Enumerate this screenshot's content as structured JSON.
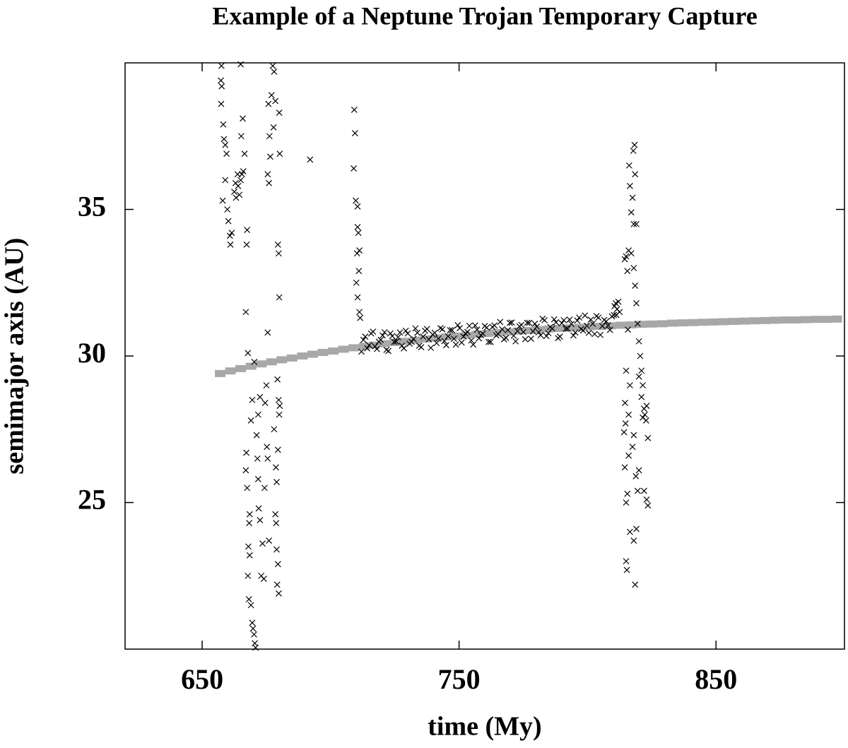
{
  "chart_data": {
    "type": "scatter",
    "title": "Example of a Neptune Trojan Temporary Capture",
    "x_label": "time (My)",
    "y_label": "semimajor axis (AU)",
    "xlim": [
      620,
      900
    ],
    "ylim": [
      20,
      40
    ],
    "xticks": [
      650,
      750,
      850
    ],
    "yticks": [
      25,
      30,
      35
    ],
    "grid": false,
    "mirror_ticks": true,
    "series": [
      {
        "color": "#a8a8a8",
        "marker": "band",
        "x": [
          657,
          661,
          665,
          669,
          673,
          677,
          681,
          685,
          689,
          693,
          697,
          701,
          705,
          709,
          713,
          717,
          721,
          725,
          729,
          733,
          737,
          741,
          745,
          749,
          753,
          757,
          761,
          765,
          769,
          773,
          777,
          781,
          785,
          789,
          793,
          797,
          801,
          805,
          809,
          813,
          817,
          821,
          825,
          829,
          833,
          837,
          841,
          845,
          849,
          853,
          857,
          861,
          865,
          869,
          873,
          877,
          881,
          885,
          889,
          893,
          897
        ],
        "values": [
          29.4,
          29.49,
          29.57,
          29.65,
          29.73,
          29.8,
          29.87,
          29.93,
          30.0,
          30.06,
          30.12,
          30.17,
          30.23,
          30.28,
          30.33,
          30.37,
          30.42,
          30.46,
          30.5,
          30.54,
          30.58,
          30.61,
          30.65,
          30.68,
          30.71,
          30.74,
          30.77,
          30.8,
          30.82,
          30.85,
          30.87,
          30.9,
          30.92,
          30.94,
          30.96,
          30.98,
          31.0,
          31.01,
          31.03,
          31.05,
          31.06,
          31.08,
          31.09,
          31.1,
          31.12,
          31.13,
          31.14,
          31.15,
          31.16,
          31.17,
          31.18,
          31.19,
          31.2,
          31.21,
          31.22,
          31.23,
          31.23,
          31.24,
          31.25,
          31.25,
          31.26
        ]
      },
      {
        "color": "#000000",
        "marker": "x",
        "x": [
          657.5,
          657.3,
          657.6,
          657.4,
          658.2,
          658.5,
          659.0,
          659.5,
          659.0,
          658.0,
          659.8,
          660.2,
          660.8,
          661.0,
          661.5,
          662.5,
          663.0,
          663.8,
          664.5,
          665.0,
          665.5,
          666.0,
          664.0,
          663.2,
          665.8,
          665.2,
          666.5,
          667.5,
          667.3,
          665.0,
          667.0,
          667.8,
          670.3,
          669.5,
          669.0,
          667.2,
          667.0,
          667.5,
          668.5,
          668.3,
          668.0,
          668.5,
          667.8,
          668.2,
          669.0,
          669.5,
          669.8,
          670.2,
          670.5,
          670.8,
          671.5,
          671.8,
          672.0,
          672.5,
          673.0,
          673.5,
          671.2,
          671.8,
          672.5,
          674.5,
          675.0,
          675.2,
          674.3,
          675.5,
          676.0,
          674.0,
          675.5,
          675.8,
          676.2,
          677.0,
          677.5,
          678.0,
          678.5,
          677.8,
          676.5,
          675.5,
          676.0,
          680.0,
          680.2,
          679.5,
          679.8,
          680.0,
          678.5,
          678.8,
          679.0,
          679.5,
          679.2,
          679.8,
          679.5,
          680.0,
          679.8,
          679.3,
          680.2,
          679.0,
          678.0,
          678.7,
          692.0,
          709.2,
          709.5,
          709.0,
          709.8,
          710.5,
          710.5,
          710.8,
          711.2,
          710.3,
          711.0,
          710.0,
          710.5,
          711.2,
          711.5,
          712,
          713.5,
          715,
          716.5,
          718,
          719.5,
          721,
          722.5,
          724,
          725.5,
          727,
          728.5,
          730,
          731.5,
          733,
          734.5,
          736,
          737.5,
          739,
          740.5,
          742,
          743.5,
          745,
          746.5,
          748,
          749.5,
          751,
          752.5,
          754,
          755.5,
          757,
          758.5,
          760,
          761.5,
          763,
          764.5,
          766,
          767.5,
          769,
          770.5,
          772,
          773.5,
          775,
          776.5,
          778,
          779.5,
          781,
          782.5,
          784,
          785.5,
          787,
          788.5,
          790,
          791.5,
          793,
          794.5,
          796,
          797.5,
          799,
          800.5,
          802,
          803.5,
          805,
          806.5,
          808,
          809.5,
          712.75,
          714.25,
          715.75,
          717.25,
          718.75,
          720.25,
          721.75,
          723.25,
          724.75,
          726.25,
          727.75,
          729.25,
          730.75,
          732.25,
          733.75,
          735.25,
          736.75,
          738.25,
          739.75,
          741.25,
          742.75,
          744.25,
          745.75,
          747.25,
          748.75,
          750.25,
          751.75,
          753.25,
          754.75,
          756.25,
          757.75,
          759.25,
          760.75,
          762.25,
          763.75,
          765.25,
          766.75,
          768.25,
          769.75,
          771.25,
          772.75,
          774.25,
          775.75,
          777.25,
          778.75,
          780.25,
          781.75,
          783.25,
          784.75,
          786.25,
          787.75,
          789.25,
          790.75,
          792.25,
          793.75,
          795.25,
          796.75,
          798.25,
          799.75,
          801.25,
          802.75,
          804.25,
          805.75,
          807.25,
          808.75,
          810.25,
          810.5,
          811,
          811.5,
          812,
          811.2,
          812.5,
          814.5,
          815,
          815.5,
          816,
          817,
          818,
          818.5,
          819,
          819.5,
          820,
          820.5,
          821,
          821.5,
          822,
          822.3,
          822.8,
          823,
          823.5,
          822,
          823,
          823.5,
          820,
          819.5,
          818,
          817.5,
          816.5,
          815,
          815.3,
          818.5,
          818,
          819,
          815,
          815.5,
          814.5,
          814.8,
          814.6,
          815,
          816,
          816.5,
          817,
          817.5,
          818,
          818.5,
          817.8,
          818.3,
          816.2,
          816.5,
          819,
          820,
          821,
          821.5,
          816,
          818.8,
          815.7,
          814.2
        ],
        "values": [
          39.9,
          39.4,
          39.2,
          38.6,
          37.9,
          37.4,
          37.2,
          36.9,
          36.0,
          35.3,
          35.0,
          34.6,
          34.1,
          33.8,
          34.2,
          35.6,
          35.9,
          36.2,
          35.5,
          36.0,
          36.2,
          36.3,
          35.8,
          35.4,
          38.1,
          37.5,
          36.9,
          34.3,
          33.8,
          39.95,
          31.5,
          30.1,
          29.8,
          28.5,
          27.8,
          26.7,
          26.1,
          25.5,
          24.6,
          24.3,
          23.5,
          23.2,
          22.5,
          21.7,
          21.5,
          20.9,
          20.7,
          20.5,
          20.2,
          20.05,
          26.5,
          25.8,
          24.8,
          24.4,
          22.5,
          23.6,
          27.3,
          28.0,
          28.6,
          28.4,
          29.0,
          26.9,
          25.5,
          26.5,
          23.7,
          22.4,
          30.8,
          38.6,
          37.5,
          38.9,
          39.9,
          39.7,
          38.7,
          37.8,
          36.8,
          36.2,
          35.9,
          38.3,
          36.9,
          33.8,
          33.5,
          32.0,
          24.6,
          24.3,
          23.4,
          22.9,
          22.2,
          21.9,
          26.8,
          28.0,
          28.5,
          29.2,
          28.3,
          25.7,
          27.5,
          26.2,
          36.7,
          38.4,
          37.6,
          36.4,
          35.3,
          35.1,
          34.4,
          34.2,
          33.6,
          33.5,
          32.9,
          32.5,
          32.0,
          31.5,
          31.3,
          30.15,
          30.66,
          30.37,
          30.83,
          30.24,
          30.55,
          30.81,
          30.17,
          30.68,
          30.49,
          30.8,
          30.26,
          30.77,
          30.48,
          30.94,
          30.35,
          30.66,
          30.92,
          30.28,
          30.79,
          30.6,
          30.91,
          30.37,
          30.88,
          30.59,
          31.05,
          30.46,
          30.77,
          31.03,
          30.39,
          30.9,
          30.71,
          31.02,
          30.48,
          30.99,
          30.7,
          31.16,
          30.57,
          30.88,
          31.14,
          30.5,
          31.01,
          30.82,
          31.13,
          30.59,
          31.1,
          30.81,
          31.27,
          30.68,
          30.99,
          31.25,
          30.61,
          31.12,
          30.93,
          31.24,
          30.7,
          31.21,
          30.92,
          31.38,
          30.79,
          31.1,
          31.36,
          30.72,
          31.23,
          31.04,
          31.35,
          30.55,
          30.26,
          30.77,
          30.33,
          30.49,
          30.7,
          30.21,
          30.77,
          30.48,
          30.64,
          30.35,
          30.86,
          30.42,
          30.58,
          30.79,
          30.3,
          30.86,
          30.57,
          30.73,
          30.44,
          30.95,
          30.51,
          30.67,
          30.88,
          30.39,
          30.95,
          30.66,
          30.82,
          30.53,
          31.04,
          30.6,
          30.76,
          30.97,
          30.48,
          31.04,
          30.75,
          30.91,
          30.62,
          31.13,
          30.69,
          30.85,
          31.06,
          30.57,
          31.13,
          30.84,
          31.0,
          30.71,
          31.22,
          30.78,
          30.94,
          31.15,
          30.66,
          31.22,
          30.93,
          31.09,
          30.8,
          31.31,
          30.87,
          31.03,
          31.24,
          30.75,
          31.31,
          31.02,
          31.18,
          30.89,
          31.4,
          31.7,
          31.8,
          31.6,
          31.85,
          31.4,
          31.5,
          33.3,
          33.4,
          32.9,
          33.6,
          33.5,
          33.0,
          32.4,
          31.8,
          31.1,
          30.5,
          30.0,
          29.5,
          29.0,
          28.2,
          28.0,
          27.8,
          28.3,
          27.2,
          25.4,
          25.1,
          24.9,
          26.1,
          25.4,
          27.3,
          26.9,
          24.0,
          23.0,
          22.7,
          22.2,
          23.7,
          24.1,
          25.0,
          25.3,
          26.2,
          27.7,
          28.4,
          29.5,
          28.0,
          29.0,
          34.9,
          35.4,
          34.5,
          36.2,
          37.0,
          37.2,
          36.5,
          35.8,
          34.5,
          29.3,
          28.6,
          27.9,
          26.6,
          25.9,
          30.9,
          27.4
        ]
      }
    ]
  }
}
